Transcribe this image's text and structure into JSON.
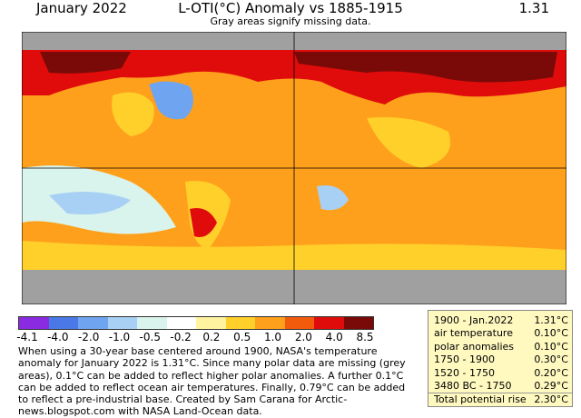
{
  "header": {
    "left": "January 2022",
    "center": "L-OTI(°C) Anomaly vs 1885-1915",
    "right": "1.31",
    "subtitle": "Gray areas signify missing data."
  },
  "legend": {
    "colors": [
      "#8a2be2",
      "#4a78e6",
      "#6fa4f0",
      "#a8d0f5",
      "#d8f4ec",
      "#ffffff",
      "#fff3a0",
      "#ffd02a",
      "#ffa01c",
      "#f25a0c",
      "#e00c0c",
      "#7a0a08"
    ],
    "ticks": [
      "-4.1",
      "-4.0",
      "-2.0",
      "-1.0",
      "-0.5",
      "-0.2",
      "0.2",
      "0.5",
      "1.0",
      "2.0",
      "4.0",
      "8.5"
    ]
  },
  "note": "When using a 30-year base centered around 1900, NASA's temperature anomaly for January 2022 is 1.31°C. Since many polar data are missing (grey areas), 0.1°C can be added to reflect higher polar anomalies. A further 0.1°C can be added to reflect ocean air temperatures. Finally, 0.79°C can be added to reflect a pre-industrial base. Created by Sam Carana for Arctic-news.blogspot.com with NASA Land-Ocean data.",
  "table": {
    "rows": [
      {
        "label": "1900 - Jan.2022",
        "value": "1.31°C"
      },
      {
        "label": "air temperature",
        "value": "0.10°C"
      },
      {
        "label": "polar anomalies",
        "value": "0.10°C"
      },
      {
        "label": "1750 - 1900",
        "value": "0.30°C"
      },
      {
        "label": "1520 - 1750",
        "value": "0.20°C"
      },
      {
        "label": "3480 BC - 1750",
        "value": "0.29°C"
      }
    ],
    "total": {
      "label": "Total potential rise",
      "value": "2.30°C"
    }
  }
}
